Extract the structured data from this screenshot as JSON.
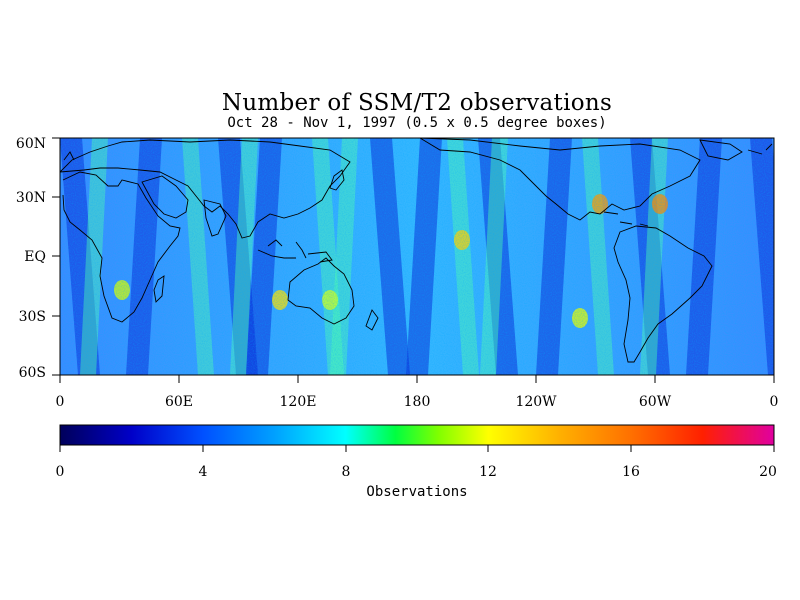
{
  "title": "Number of SSM/T2 observations",
  "subtitle": "Oct 28 - Nov 1, 1997 (0.5 x 0.5 degree boxes)",
  "map": {
    "lat_labels": [
      "60N",
      "30N",
      "EQ",
      "30S",
      "60S"
    ],
    "lon_labels": [
      "0",
      "60E",
      "120E",
      "180",
      "120W",
      "60W",
      "0"
    ]
  },
  "colorbar": {
    "tick_labels": [
      "0",
      "4",
      "8",
      "12",
      "16",
      "20"
    ],
    "label": "Observations",
    "colors": [
      "#00005a",
      "#0000c8",
      "#0050ff",
      "#00a0ff",
      "#00ffff",
      "#00ff40",
      "#80ff00",
      "#ffff00",
      "#ffb000",
      "#ff7000",
      "#ff2000",
      "#ff0060",
      "#e000a0"
    ]
  }
}
